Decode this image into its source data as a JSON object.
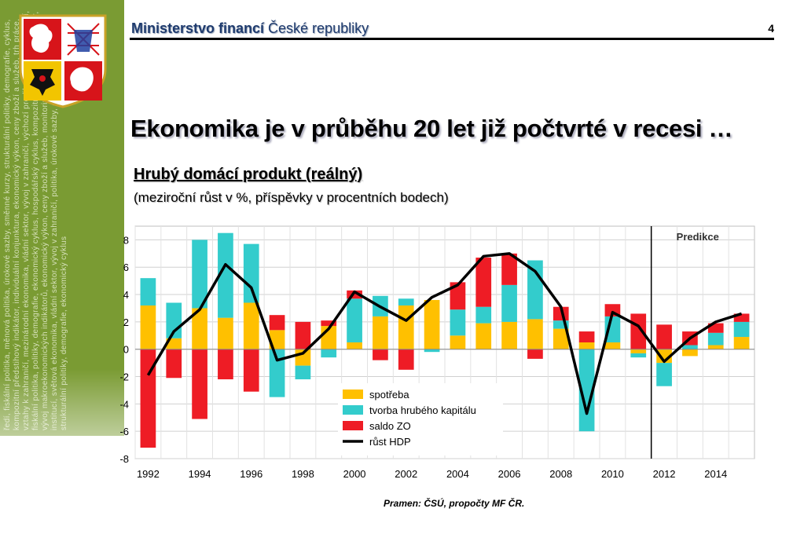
{
  "header": {
    "title_bold": "Ministerstvo financí",
    "title_rest": " České republiky",
    "page_number": "4"
  },
  "sidebar": {
    "text": "ředí, fiskální politika, měnová politika, úrokové sazby, směnné kurzy, strukturální politiky, demografie, cyklus, kompozitní předstihový indikátor, individuální konjunktura, ekonomický výkon, ceny zboží a služeb, trh práce, vztahy k zahraničí, mezinárodní ekonomika, vládní sektor, vývoj v zahraničí, výchozí predikce, vnější prostředí, fiskální politika, politiky, demografie, ekonomický cyklus, hospodářský cyklus, kompozitní předstihový indikátor, vývoj makroekonomických indikátorů, ekonomický výkon, ceny zboží a služeb, monitoring predikcí ostatních institucí, světová ekonomika, vládní sektor, vývoj v zahraničí, politika, úrokové sazby, směnné kurzy, strukturální politiky, demografie, ekonomický cyklus"
  },
  "main_title": "Ekonomika je v průběhu 20 let již počtvrté v recesi …",
  "subtitle": "Hrubý domácí produkt (reálný)",
  "subnote": "(meziroční růst v %, příspěvky v procentních bodech)",
  "source": "Pramen: ČSÚ, propočty MF ČR.",
  "colors": {
    "consumption": "#ffc000",
    "capital": "#33cccc",
    "net_exports": "#ee1c25",
    "gdp_line": "#000000",
    "sidebar": "#7a9b33",
    "header_text": "#1f3b6e"
  },
  "chart_data": {
    "type": "bar",
    "stacked": true,
    "annotation": "Predikce",
    "prediction_start_after": 2011,
    "years": [
      1992,
      1993,
      1994,
      1995,
      1996,
      1997,
      1998,
      1999,
      2000,
      2001,
      2002,
      2003,
      2004,
      2005,
      2006,
      2007,
      2008,
      2009,
      2010,
      2011,
      2012,
      2013,
      2014,
      2015
    ],
    "x_tick_labels": [
      "1992",
      "1994",
      "1996",
      "1998",
      "2000",
      "2002",
      "2004",
      "2006",
      "2008",
      "2010",
      "2012",
      "2014"
    ],
    "y_ticks": [
      8,
      6,
      4,
      2,
      0,
      -2,
      -4,
      -6,
      -8
    ],
    "ylim": [
      -8,
      9
    ],
    "grid": true,
    "legend_position": "bottom-center",
    "series": [
      {
        "name": "spotřeba",
        "key": "consumption",
        "values": [
          3.2,
          0.8,
          3.0,
          2.3,
          3.4,
          1.4,
          -1.2,
          1.7,
          0.5,
          2.4,
          3.2,
          3.6,
          1.0,
          1.9,
          2.0,
          2.2,
          1.5,
          0.5,
          0.5,
          -0.3,
          -1.0,
          -0.5,
          0.3,
          0.9
        ]
      },
      {
        "name": "tvorba hrubého kapitálu",
        "key": "capital",
        "values": [
          2.0,
          2.6,
          5.0,
          6.2,
          4.3,
          -3.5,
          -1.0,
          -0.6,
          3.2,
          1.5,
          0.5,
          -0.2,
          1.9,
          1.2,
          2.7,
          4.3,
          0.6,
          -6.0,
          1.9,
          -0.3,
          -1.7,
          0.3,
          0.9,
          1.1
        ]
      },
      {
        "name": "saldo ZO",
        "key": "net_exports",
        "values": [
          -7.2,
          -2.1,
          -5.1,
          -2.2,
          -3.1,
          1.1,
          2.0,
          0.4,
          0.6,
          -0.8,
          -1.5,
          0.0,
          2.0,
          3.6,
          2.3,
          -0.7,
          1.0,
          0.8,
          0.9,
          2.6,
          1.8,
          1.0,
          0.7,
          0.6
        ]
      },
      {
        "name": "růst HDP",
        "key": "gdp_line",
        "type": "line",
        "values": [
          -1.9,
          1.3,
          2.9,
          6.2,
          4.5,
          -0.8,
          -0.3,
          1.5,
          4.2,
          3.1,
          2.1,
          3.8,
          4.7,
          6.8,
          7.0,
          5.7,
          3.1,
          -4.7,
          2.7,
          1.7,
          -0.9,
          0.8,
          2.0,
          2.6
        ]
      }
    ]
  }
}
